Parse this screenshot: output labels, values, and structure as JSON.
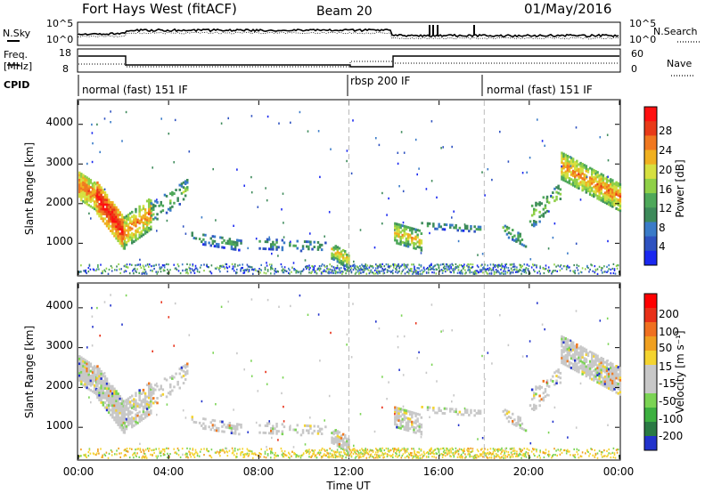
{
  "header": {
    "station": "Fort Hays West (fitACF)",
    "beam": "Beam 20",
    "date": "01/May/2016"
  },
  "top_panel": {
    "left_label": "N.Sky",
    "left_ticks": [
      "10^5",
      "10^0"
    ],
    "right_label": "N.Search",
    "right_ticks": [
      "10^5",
      "10^0"
    ]
  },
  "freq_panel": {
    "left_label_1": "Freq.",
    "left_label_2": "[MHz]",
    "left_ticks": [
      "18",
      "8"
    ],
    "right_label": "Nave",
    "right_ticks": [
      "60",
      "0"
    ]
  },
  "cpid": {
    "label": "CPID",
    "segments": [
      {
        "text": "normal (fast) 151 IF",
        "start": 0
      },
      {
        "text": "rbsp 200 IF",
        "start": 12
      },
      {
        "text": "normal (fast) 151 IF",
        "start": 18
      }
    ]
  },
  "chart_data": [
    {
      "type": "heatmap",
      "ylabel": "Slant Range [km]",
      "yticks": [
        "1000",
        "2000",
        "3000",
        "4000"
      ],
      "ylim": [
        200,
        4600
      ],
      "colorbar": {
        "label": "Power [dB]",
        "ticks": [
          "4",
          "8",
          "12",
          "16",
          "20",
          "24",
          "28"
        ],
        "range": [
          0,
          30
        ],
        "colors": [
          "#1a28f0",
          "#2e52c0",
          "#3a7bc8",
          "#3d8a5a",
          "#4ea85a",
          "#8fd048",
          "#d6e040",
          "#f0b020",
          "#f07820",
          "#e83a18",
          "#ff1010"
        ]
      }
    },
    {
      "type": "heatmap",
      "xlabel": "Time UT",
      "ylabel": "Slant Range [km]",
      "yticks": [
        "1000",
        "2000",
        "3000",
        "4000"
      ],
      "xticks": [
        "00:00",
        "04:00",
        "08:00",
        "12:00",
        "16:00",
        "20:00",
        "00:00"
      ],
      "xlim": [
        0,
        24
      ],
      "ylim": [
        200,
        4600
      ],
      "colorbar": {
        "label": "Velocity [m s⁻¹]",
        "ticks": [
          "200",
          "100",
          "50",
          "15",
          "-15",
          "-50",
          "-100",
          "-200"
        ],
        "range": [
          -250,
          250
        ],
        "colors": [
          "#2233cc",
          "#2a7a44",
          "#3db040",
          "#7bd454",
          "#c8c8c8",
          "#c8c8c8",
          "#f4d430",
          "#f0a020",
          "#f07020",
          "#e83018",
          "#ff0000"
        ]
      }
    }
  ]
}
